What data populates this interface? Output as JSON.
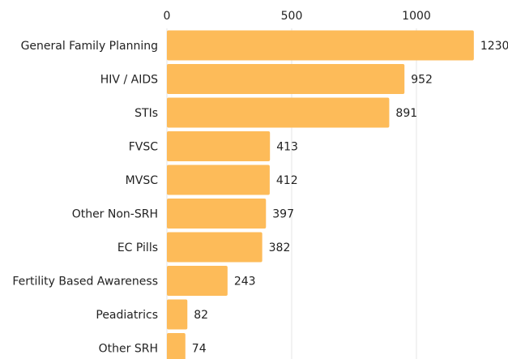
{
  "chart_data": {
    "type": "bar",
    "orientation": "horizontal",
    "categories": [
      "General Family Planning",
      "HIV / AIDS",
      "STIs",
      "FVSC",
      "MVSC",
      "Other Non-SRH",
      "EC Pills",
      "Fertility Based Awareness",
      "Peadiatrics",
      "Other SRH"
    ],
    "values": [
      1230,
      952,
      891,
      413,
      412,
      397,
      382,
      243,
      82,
      74
    ],
    "color": "#fdbb59",
    "xlim": [
      0,
      1350
    ],
    "xticks": [
      0,
      500,
      1000
    ],
    "grid": true,
    "x_axis_position": "top"
  }
}
